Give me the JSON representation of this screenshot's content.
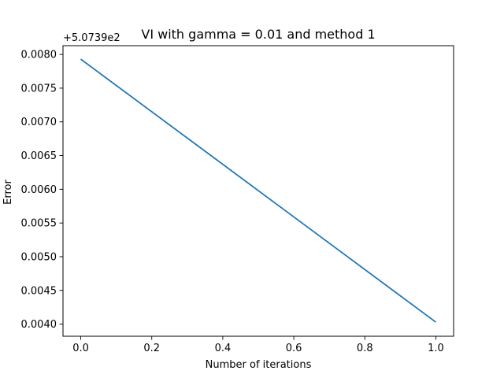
{
  "chart_data": {
    "type": "line",
    "title": "VI with gamma = 0.01 and method 1",
    "xlabel": "Number of iterations",
    "ylabel": "Error",
    "y_offset_label": "+5.0739e2",
    "xlim": [
      -0.05,
      1.05
    ],
    "ylim": [
      0.00382,
      0.00813
    ],
    "x_ticks": [
      0.0,
      0.2,
      0.4,
      0.6,
      0.8,
      1.0
    ],
    "x_tick_labels": [
      "0.0",
      "0.2",
      "0.4",
      "0.6",
      "0.8",
      "1.0"
    ],
    "y_ticks": [
      0.004,
      0.0045,
      0.005,
      0.0055,
      0.006,
      0.0065,
      0.007,
      0.0075,
      0.008
    ],
    "y_tick_labels": [
      "0.0040",
      "0.0045",
      "0.0050",
      "0.0055",
      "0.0060",
      "0.0065",
      "0.0070",
      "0.0075",
      "0.0080"
    ],
    "grid": false,
    "series": [
      {
        "color": "#1f77b4",
        "x": [
          0.0,
          1.0
        ],
        "y": [
          0.00793,
          0.00403
        ]
      }
    ]
  }
}
